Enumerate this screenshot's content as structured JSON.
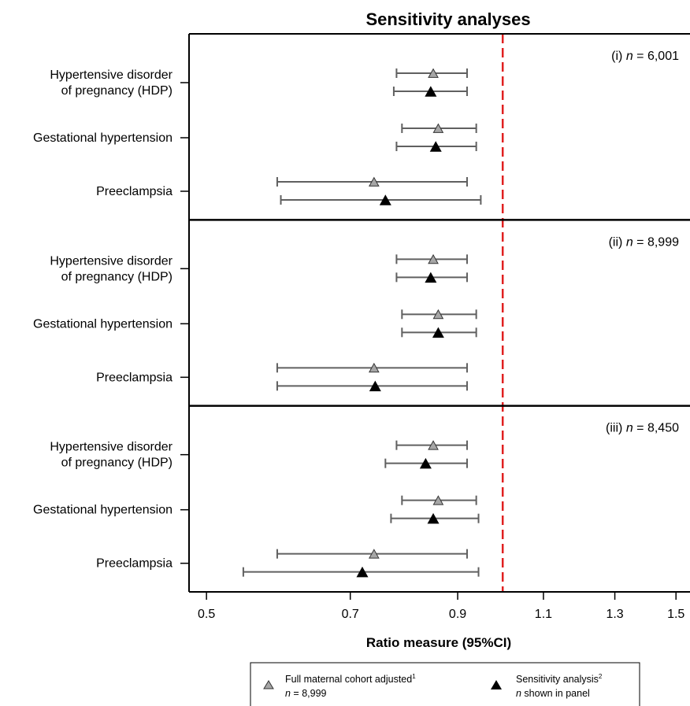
{
  "chart_data": {
    "type": "forest",
    "title": "Sensitivity analyses",
    "xlabel": "Ratio measure (95%CI)",
    "x_scale": "log",
    "xlim": [
      0.48,
      1.55
    ],
    "xticks": [
      "0.5",
      "0.7",
      "0.9",
      "1.1",
      "1.3",
      "1.5"
    ],
    "reference_line": {
      "x": 1.0,
      "style": "dashed",
      "color": "#e02020"
    },
    "categories": [
      [
        "Hypertensive disorder",
        "of pregnancy (HDP)"
      ],
      [
        "Gestational hypertension"
      ],
      [
        "Preeclampsia"
      ]
    ],
    "panels": [
      {
        "label_prefix": "(i) ",
        "label_n": "n",
        "label_suffix": " = 6,001",
        "full": [
          {
            "est": 0.85,
            "lo": 0.78,
            "hi": 0.92
          },
          {
            "est": 0.86,
            "lo": 0.79,
            "hi": 0.94
          },
          {
            "est": 0.74,
            "lo": 0.59,
            "hi": 0.92
          }
        ],
        "sens": [
          {
            "est": 0.845,
            "lo": 0.775,
            "hi": 0.92
          },
          {
            "est": 0.855,
            "lo": 0.78,
            "hi": 0.94
          },
          {
            "est": 0.76,
            "lo": 0.595,
            "hi": 0.95
          }
        ]
      },
      {
        "label_prefix": "(ii) ",
        "label_n": "n",
        "label_suffix": " = 8,999",
        "full": [
          {
            "est": 0.85,
            "lo": 0.78,
            "hi": 0.92
          },
          {
            "est": 0.86,
            "lo": 0.79,
            "hi": 0.94
          },
          {
            "est": 0.74,
            "lo": 0.59,
            "hi": 0.92
          }
        ],
        "sens": [
          {
            "est": 0.845,
            "lo": 0.78,
            "hi": 0.92
          },
          {
            "est": 0.86,
            "lo": 0.79,
            "hi": 0.94
          },
          {
            "est": 0.742,
            "lo": 0.59,
            "hi": 0.92
          }
        ]
      },
      {
        "label_prefix": "(iii) ",
        "label_n": "n",
        "label_suffix": " = 8,450",
        "full": [
          {
            "est": 0.85,
            "lo": 0.78,
            "hi": 0.92
          },
          {
            "est": 0.86,
            "lo": 0.79,
            "hi": 0.94
          },
          {
            "est": 0.74,
            "lo": 0.59,
            "hi": 0.92
          }
        ],
        "sens": [
          {
            "est": 0.835,
            "lo": 0.76,
            "hi": 0.92
          },
          {
            "est": 0.85,
            "lo": 0.77,
            "hi": 0.945
          },
          {
            "est": 0.72,
            "lo": 0.545,
            "hi": 0.945
          }
        ]
      }
    ],
    "colors": {
      "full_marker": "#a6a6a6",
      "sens_marker": "#000000",
      "ci_line": "#606060"
    },
    "legend": {
      "placement": "bottom",
      "items": [
        {
          "name": "Full maternal cohort adjusted",
          "sup": "1",
          "sub_n": "n",
          "sub_rest": " = 8,999",
          "marker": "gray-triangle"
        },
        {
          "name": "Sensitivity analysis",
          "sup": "2",
          "sub_n": "n",
          "sub_rest": " shown in panel",
          "marker": "black-triangle"
        }
      ]
    }
  }
}
